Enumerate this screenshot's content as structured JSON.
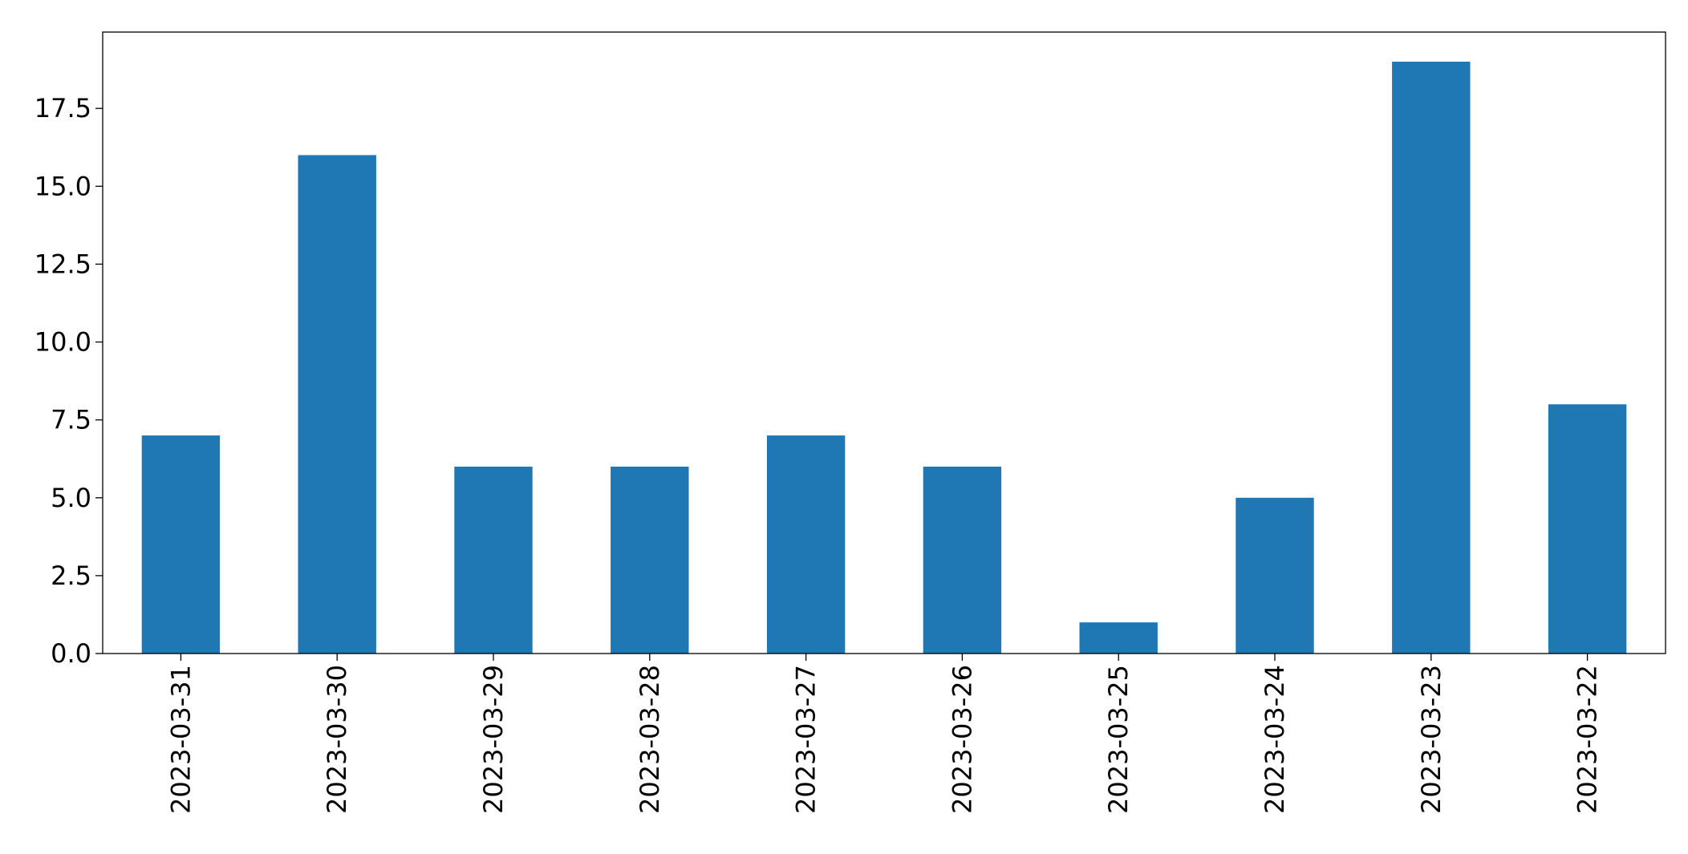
{
  "chart_data": {
    "type": "bar",
    "title": "",
    "xlabel": "",
    "ylabel": "",
    "categories": [
      "2023-03-31",
      "2023-03-30",
      "2023-03-29",
      "2023-03-28",
      "2023-03-27",
      "2023-03-26",
      "2023-03-25",
      "2023-03-24",
      "2023-03-23",
      "2023-03-22"
    ],
    "values": [
      7,
      16,
      6,
      6,
      7,
      6,
      1,
      5,
      19,
      8
    ],
    "ylim": [
      0,
      19.95
    ],
    "yticks": [
      0,
      2.5,
      5,
      7.5,
      10,
      12.5,
      15,
      17.5
    ],
    "ytick_labels": [
      "0.0",
      "2.5",
      "5.0",
      "7.5",
      "10.0",
      "12.5",
      "15.0",
      "17.5"
    ],
    "grid": false,
    "legend": "none",
    "bar_color": "#1f77b4",
    "axis_color": "#000000",
    "background": "#ffffff"
  }
}
